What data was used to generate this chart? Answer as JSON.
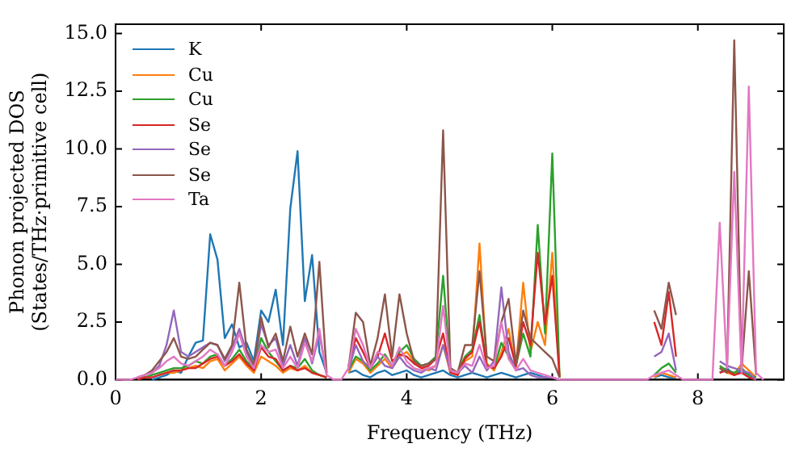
{
  "chart_data": {
    "type": "line",
    "xlabel": "Frequency (THz)",
    "ylabel": "Phonon projected DOS\n(States/THz·primitive cell)",
    "x": [
      0,
      0.1,
      0.2,
      0.3,
      0.4,
      0.5,
      0.6,
      0.7,
      0.8,
      0.9,
      1,
      1.1,
      1.2,
      1.3,
      1.4,
      1.5,
      1.6,
      1.7,
      1.8,
      1.9,
      2,
      2.1,
      2.2,
      2.3,
      2.4,
      2.5,
      2.6,
      2.7,
      2.8,
      2.9,
      3,
      3.1,
      3.2,
      3.3,
      3.4,
      3.5,
      3.6,
      3.7,
      3.8,
      3.9,
      4,
      4.1,
      4.2,
      4.3,
      4.4,
      4.5,
      4.6,
      4.7,
      4.8,
      4.9,
      5,
      5.1,
      5.2,
      5.3,
      5.4,
      5.5,
      5.6,
      5.7,
      5.8,
      5.9,
      6,
      6.1,
      6.2,
      6.3,
      6.4,
      6.5,
      6.6,
      6.7,
      6.8,
      6.9,
      7,
      7.1,
      7.2,
      7.3,
      7.4,
      7.5,
      7.6,
      7.7,
      7.8,
      7.9,
      8,
      8.1,
      8.2,
      8.3,
      8.4,
      8.5,
      8.6,
      8.7,
      8.8,
      8.9
    ],
    "series": [
      {
        "name": "K",
        "color": "#1f77b4",
        "values": [
          null,
          null,
          null,
          null,
          null,
          0,
          0.1,
          0.2,
          0.4,
          0.3,
          1.0,
          1.6,
          1.7,
          6.3,
          5.2,
          1.8,
          2.4,
          1.4,
          1.6,
          0.8,
          3.0,
          2.5,
          3.9,
          1.5,
          7.4,
          9.9,
          3.4,
          5.4,
          1.2,
          0.3,
          null,
          null,
          0.3,
          0.4,
          0.2,
          0.1,
          0.3,
          0.4,
          0.2,
          0.3,
          0.4,
          0.2,
          0.1,
          0.2,
          0.3,
          0.4,
          0.2,
          0.1,
          0.2,
          0.3,
          0.2,
          0.1,
          0.2,
          0.3,
          0.2,
          0.1,
          0.2,
          0.3,
          0.2,
          0.1,
          0.1,
          0,
          null,
          null,
          null,
          null,
          null,
          null,
          null,
          null,
          null,
          null,
          null,
          null,
          0.1,
          0.2,
          0.1,
          0.1,
          null,
          null,
          null,
          null,
          null,
          0.3,
          0.5,
          0.2,
          0.4,
          0.2,
          0,
          null
        ]
      },
      {
        "name": "Cu",
        "color": "#ff7f0e",
        "values": [
          null,
          null,
          null,
          null,
          null,
          null,
          0.2,
          0.3,
          0.3,
          0.4,
          0.5,
          0.6,
          0.5,
          0.8,
          0.9,
          0.4,
          0.7,
          1.0,
          0.6,
          0.3,
          1.0,
          0.8,
          0.6,
          0.3,
          0.5,
          0.4,
          0.6,
          0.3,
          0.2,
          0.1,
          null,
          null,
          0.3,
          0.9,
          0.7,
          0.3,
          0.6,
          0.9,
          0.5,
          1.0,
          1.2,
          0.8,
          0.5,
          0.4,
          0.6,
          1.5,
          0.3,
          0.2,
          0.8,
          1.0,
          5.9,
          0.7,
          0.4,
          1.2,
          2.2,
          0.5,
          4.2,
          1.2,
          2.5,
          1.5,
          5.5,
          0.1,
          null,
          null,
          null,
          null,
          null,
          null,
          null,
          null,
          null,
          null,
          null,
          null,
          0.1,
          0.3,
          0.2,
          0.1,
          null,
          null,
          null,
          null,
          null,
          0.5,
          0.3,
          0.2,
          0.7,
          0.4,
          0.1,
          null
        ]
      },
      {
        "name": "Cu",
        "color": "#2ca02c",
        "values": [
          null,
          null,
          null,
          0.1,
          0.1,
          0.2,
          0.3,
          0.4,
          0.5,
          0.5,
          0.6,
          0.8,
          0.7,
          1.0,
          1.1,
          0.6,
          0.9,
          1.3,
          0.8,
          0.5,
          1.8,
          1.2,
          0.8,
          0.4,
          0.6,
          0.5,
          0.9,
          0.4,
          0.2,
          0.1,
          null,
          null,
          0.4,
          1.0,
          0.8,
          0.4,
          0.7,
          1.1,
          0.6,
          1.2,
          1.5,
          0.9,
          0.6,
          0.7,
          1.0,
          4.5,
          0.4,
          0.3,
          1.0,
          1.3,
          2.8,
          0.6,
          0.5,
          1.6,
          1.0,
          0.6,
          2.0,
          1.0,
          6.7,
          2.0,
          9.8,
          0.1,
          null,
          null,
          null,
          null,
          null,
          null,
          null,
          null,
          null,
          null,
          null,
          null,
          0.2,
          0.5,
          0.7,
          0.3,
          null,
          null,
          null,
          null,
          null,
          0.6,
          0.4,
          0.3,
          0.5,
          0.2,
          0.1,
          null
        ]
      },
      {
        "name": "Se",
        "color": "#d62728",
        "values": [
          null,
          null,
          null,
          0,
          0.1,
          0.1,
          0.2,
          0.3,
          0.4,
          0.4,
          0.5,
          0.5,
          0.7,
          0.9,
          1.0,
          0.6,
          0.8,
          1.1,
          0.7,
          0.4,
          1.4,
          1.0,
          0.9,
          0.4,
          0.6,
          0.4,
          0.5,
          0.3,
          0.2,
          0.1,
          null,
          null,
          0.6,
          1.8,
          1.2,
          0.5,
          1.0,
          2.0,
          0.8,
          1.1,
          1.0,
          0.7,
          0.5,
          0.6,
          0.9,
          2.0,
          0.3,
          0.2,
          0.9,
          1.2,
          2.5,
          0.6,
          0.5,
          1.0,
          1.8,
          0.6,
          2.5,
          1.5,
          5.5,
          2.4,
          4.5,
          0.1,
          null,
          null,
          null,
          null,
          null,
          null,
          null,
          null,
          null,
          null,
          null,
          null,
          2.5,
          1.5,
          3.8,
          1.0,
          null,
          null,
          null,
          null,
          null,
          0.3,
          0.4,
          0.2,
          0.3,
          0.1,
          0,
          null
        ]
      },
      {
        "name": "Se",
        "color": "#9467bd",
        "values": [
          null,
          null,
          null,
          0.1,
          0.2,
          0.3,
          0.6,
          1.5,
          3.0,
          1.2,
          1.0,
          1.2,
          1.4,
          1.6,
          1.5,
          0.8,
          1.4,
          2.2,
          1.2,
          0.5,
          2.4,
          1.5,
          1.8,
          0.6,
          1.5,
          0.6,
          1.8,
          0.7,
          2.0,
          0.2,
          null,
          null,
          0.4,
          1.5,
          0.8,
          0.5,
          1.0,
          0.6,
          0.5,
          1.0,
          0.6,
          0.4,
          0.3,
          0.5,
          0.4,
          1.5,
          0.4,
          0.3,
          0.6,
          0.3,
          1.0,
          0.4,
          0.8,
          4.0,
          1.2,
          0.4,
          0.5,
          0.2,
          0.1,
          0.1,
          0.1,
          0,
          null,
          null,
          null,
          null,
          null,
          null,
          null,
          null,
          null,
          null,
          null,
          null,
          1.0,
          1.2,
          2.0,
          0.4,
          null,
          null,
          null,
          null,
          null,
          0.8,
          0.6,
          0.5,
          0.4,
          0.3,
          0,
          null
        ]
      },
      {
        "name": "Se",
        "color": "#8c564b",
        "values": [
          null,
          null,
          null,
          0.1,
          0.2,
          0.4,
          0.8,
          1.2,
          1.8,
          1.0,
          0.9,
          1.0,
          1.3,
          1.6,
          1.5,
          0.9,
          1.5,
          4.2,
          1.3,
          0.6,
          2.7,
          1.4,
          2.0,
          0.8,
          2.3,
          1.0,
          2.0,
          1.1,
          5.1,
          0.3,
          null,
          null,
          0.5,
          2.9,
          2.5,
          0.6,
          1.8,
          3.7,
          1.0,
          3.7,
          2.0,
          0.8,
          0.6,
          0.7,
          0.9,
          10.8,
          0.5,
          0.3,
          1.5,
          1.5,
          4.7,
          1.0,
          0.8,
          2.5,
          3.5,
          0.7,
          3.0,
          1.8,
          1.5,
          1.2,
          0.9,
          0.1,
          null,
          null,
          null,
          null,
          null,
          null,
          null,
          null,
          null,
          null,
          null,
          null,
          3.0,
          2.2,
          4.2,
          2.8,
          null,
          null,
          null,
          null,
          null,
          0.5,
          0.3,
          14.7,
          0.4,
          4.7,
          0.2,
          null
        ]
      },
      {
        "name": "Ta",
        "color": "#e377c2",
        "values": [
          0,
          0,
          0,
          0.1,
          0.2,
          0.3,
          0.5,
          0.8,
          1.0,
          0.7,
          0.6,
          0.8,
          1.0,
          1.3,
          1.1,
          0.6,
          1.2,
          2.0,
          1.0,
          0.5,
          1.5,
          1.2,
          1.3,
          0.5,
          1.0,
          0.5,
          1.6,
          0.8,
          2.2,
          0.2,
          0,
          0,
          0.5,
          2.2,
          1.5,
          0.5,
          1.2,
          1.0,
          0.6,
          1.4,
          0.8,
          0.5,
          0.4,
          0.5,
          0.6,
          3.2,
          0.4,
          0.3,
          0.7,
          0.6,
          1.5,
          0.5,
          0.6,
          2.5,
          0.9,
          0.4,
          0.9,
          0.4,
          0.3,
          0.2,
          0.1,
          0,
          0,
          0,
          0,
          0,
          0,
          0,
          0,
          0,
          0,
          0,
          0,
          0,
          0.2,
          0.3,
          0.4,
          0.2,
          0,
          0,
          0,
          0,
          0,
          6.8,
          0.5,
          9.0,
          0.3,
          12.7,
          0.3,
          0
        ]
      }
    ],
    "xlim": [
      0,
      9.18
    ],
    "xticks": [
      0,
      2,
      4,
      6,
      8
    ],
    "ylim": [
      0,
      15.4
    ],
    "yticks": [
      {
        "value": 0,
        "label": "0.0"
      },
      {
        "value": 2.5,
        "label": "2.5"
      },
      {
        "value": 5,
        "label": "5.0"
      },
      {
        "value": 7.5,
        "label": "7.5"
      },
      {
        "value": 10,
        "label": "10.0"
      },
      {
        "value": 12.5,
        "label": "12.5"
      },
      {
        "value": 15,
        "label": "15.0"
      }
    ],
    "grid": false,
    "legend": "top left",
    "marker": "none",
    "line_style": "solid"
  }
}
